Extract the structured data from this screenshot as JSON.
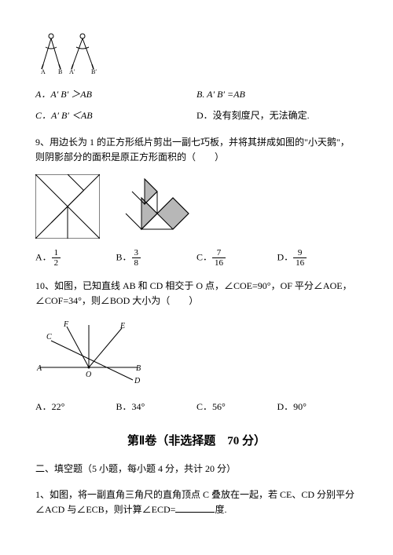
{
  "compasses": {
    "label_a": "A",
    "label_b": "B",
    "label_ap": "A′",
    "label_bp": "B′"
  },
  "q8_options": {
    "a": "A．A′ B′ ＞AB",
    "b": "B. A′ B′ =AB",
    "c": "C．A′ B′ ＜AB",
    "d": "D．没有刻度尺，无法确定."
  },
  "q9": {
    "text": "9、用边长为 1 的正方形纸片剪出一副七巧板，并将其拼成如图的\"小天鹅\"，则阴影部分的面积是原正方形面积的（　　）",
    "options": {
      "a_label": "A．",
      "a_num": "1",
      "a_den": "2",
      "b_label": "B．",
      "b_num": "3",
      "b_den": "8",
      "c_label": "C．",
      "c_num": "7",
      "c_den": "16",
      "d_label": "D．",
      "d_num": "9",
      "d_den": "16"
    }
  },
  "q10": {
    "text": "10、如图，已知直线 AB 和 CD 相交于 O 点，∠COE=90°，OF 平分∠AOE，∠COF=34°，则∠BOD 大小为（　　）",
    "labels": {
      "F": "F",
      "E": "E",
      "C": "C",
      "A": "A",
      "O": "O",
      "B": "B",
      "D": "D"
    },
    "options": {
      "a": "A．22°",
      "b": "B．34°",
      "c": "C．56°",
      "d": "D．90°"
    }
  },
  "section2": {
    "title": "第Ⅱ卷（非选择题　70 分）"
  },
  "fill": {
    "heading": "二、填空题（5 小题，每小题 4 分，共计 20 分）",
    "q1_pre": "1、如图，将一副直角三角尺的直角顶点 C 叠放在一起，若 CE、CD 分别平分∠ACD 与∠ECB，则计算∠ECD=",
    "q1_post": "度."
  },
  "colors": {
    "text": "#000000",
    "bg": "#ffffff",
    "shade": "#b7b7b7",
    "line": "#000000"
  },
  "tangram_square": {
    "size": 82,
    "segments": [
      [
        0,
        0,
        82,
        0
      ],
      [
        82,
        0,
        82,
        82
      ],
      [
        82,
        82,
        0,
        82
      ],
      [
        0,
        82,
        0,
        0
      ],
      [
        0,
        0,
        82,
        82
      ],
      [
        82,
        0,
        41,
        41
      ],
      [
        0,
        82,
        41,
        41
      ],
      [
        41,
        0,
        61.5,
        20.5
      ],
      [
        61.5,
        20.5,
        41,
        41
      ],
      [
        20.5,
        61.5,
        41,
        41
      ],
      [
        41,
        41,
        41,
        82
      ]
    ]
  },
  "swan": {
    "width": 100,
    "height": 82,
    "shaded": [
      "30,30 50,50 30,70",
      "50,50 70,30 90,50 70,70",
      "34,6 50,22 34,38"
    ],
    "outline": [
      "50,50 70,30 90,50 70,70",
      "30,30 50,50 30,70 10,50",
      "50,50 30,70 70,70",
      "34,6 50,22 34,38 18,22",
      "50,22 50,50",
      "34,6 34,38"
    ]
  }
}
